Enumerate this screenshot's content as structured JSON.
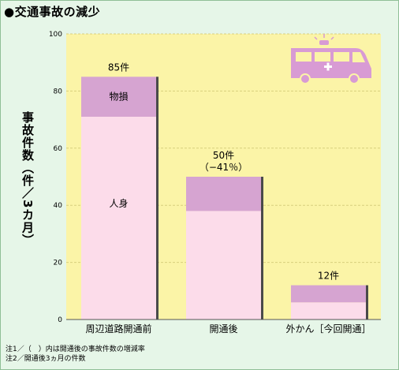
{
  "title": "●交通事故の減少",
  "notes": [
    "注1／（　）内は開通後の事故件数の増減率",
    "注2／開通後3ヵ月の件数"
  ],
  "colors": {
    "plot_bg": "#fbf4a7",
    "grid": "#d8cf7e",
    "person": "#fcdcea",
    "property": "#d6a4d1",
    "shadow": "#4a4a4a",
    "icon": "#d89bd4"
  },
  "icon": "ambulance-icon",
  "chart_data": {
    "type": "bar",
    "stacked": true,
    "ylabel": "事故件数（件／3カ月）",
    "ylim": [
      0,
      100
    ],
    "yticks": [
      0,
      20,
      40,
      60,
      80,
      100
    ],
    "grid": true,
    "categories": [
      "周辺道路開通前",
      "開通後",
      "外かん［今回開通］"
    ],
    "series": [
      {
        "name": "人身",
        "values": [
          71,
          38,
          6
        ]
      },
      {
        "name": "物損",
        "values": [
          14,
          12,
          6
        ]
      }
    ],
    "totals": [
      85,
      50,
      12
    ],
    "total_labels": [
      "85件",
      "50件",
      "12件"
    ],
    "change_labels": [
      "",
      "（−41％）",
      ""
    ]
  }
}
